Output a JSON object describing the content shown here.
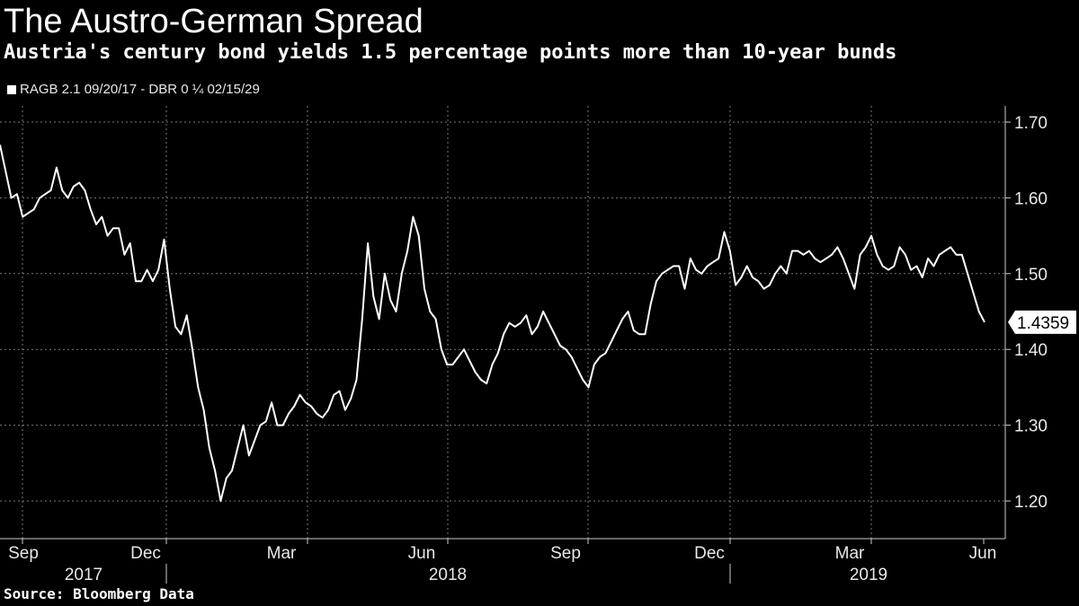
{
  "title": "The Austro-German Spread",
  "subtitle": "Austria's century bond yields 1.5 percentage points more than 10-year bunds",
  "legend_label": "RAGB 2.1 09/20/17 - DBR 0 ¼  02/15/29",
  "source": "Source: Bloomberg Data",
  "colors": {
    "background": "#000000",
    "line": "#ffffff",
    "grid": "#808080",
    "text": "#e8e8e8"
  },
  "chart_data": {
    "type": "line",
    "title": "The Austro-German Spread",
    "xlabel": "",
    "ylabel": "",
    "ylim": [
      1.15,
      1.72
    ],
    "y_ticks": [
      "1.20",
      "1.30",
      "1.40",
      "1.50",
      "1.60",
      "1.70"
    ],
    "x_months": [
      "Sep",
      "Dec",
      "Mar",
      "Jun",
      "Sep",
      "Dec",
      "Mar",
      "Jun"
    ],
    "x_years": [
      "2017",
      "2018",
      "2019"
    ],
    "last_value_label": "1.4359",
    "grid": true,
    "legend_position": "top-left",
    "series": [
      {
        "name": "RAGB 2.1 09/20/17 - DBR 0 ¼  02/15/29",
        "x_start": "2017-09-01",
        "x_end": "2019-06-04",
        "values": [
          1.67,
          1.635,
          1.6,
          1.605,
          1.575,
          1.58,
          1.585,
          1.6,
          1.605,
          1.61,
          1.64,
          1.61,
          1.6,
          1.615,
          1.62,
          1.61,
          1.585,
          1.565,
          1.575,
          1.55,
          1.56,
          1.56,
          1.525,
          1.54,
          1.49,
          1.49,
          1.505,
          1.49,
          1.505,
          1.545,
          1.48,
          1.43,
          1.42,
          1.445,
          1.4,
          1.35,
          1.32,
          1.27,
          1.24,
          1.2,
          1.23,
          1.24,
          1.27,
          1.3,
          1.26,
          1.28,
          1.3,
          1.305,
          1.33,
          1.3,
          1.3,
          1.315,
          1.325,
          1.34,
          1.33,
          1.325,
          1.315,
          1.31,
          1.32,
          1.34,
          1.345,
          1.32,
          1.335,
          1.36,
          1.44,
          1.54,
          1.47,
          1.44,
          1.5,
          1.465,
          1.45,
          1.5,
          1.53,
          1.575,
          1.55,
          1.48,
          1.45,
          1.44,
          1.4,
          1.38,
          1.38,
          1.39,
          1.4,
          1.385,
          1.37,
          1.36,
          1.355,
          1.38,
          1.395,
          1.42,
          1.435,
          1.43,
          1.435,
          1.445,
          1.42,
          1.43,
          1.45,
          1.435,
          1.42,
          1.405,
          1.4,
          1.39,
          1.375,
          1.36,
          1.35,
          1.38,
          1.39,
          1.395,
          1.41,
          1.425,
          1.44,
          1.45,
          1.425,
          1.42,
          1.42,
          1.46,
          1.49,
          1.5,
          1.505,
          1.51,
          1.51,
          1.48,
          1.52,
          1.505,
          1.5,
          1.51,
          1.515,
          1.52,
          1.555,
          1.53,
          1.485,
          1.495,
          1.51,
          1.495,
          1.49,
          1.48,
          1.485,
          1.5,
          1.51,
          1.5,
          1.53,
          1.53,
          1.525,
          1.53,
          1.52,
          1.515,
          1.52,
          1.525,
          1.535,
          1.52,
          1.5,
          1.48,
          1.525,
          1.535,
          1.55,
          1.525,
          1.51,
          1.505,
          1.51,
          1.535,
          1.525,
          1.505,
          1.51,
          1.495,
          1.52,
          1.51,
          1.525,
          1.53,
          1.535,
          1.525,
          1.525,
          1.5,
          1.475,
          1.45,
          1.4359
        ]
      }
    ]
  }
}
